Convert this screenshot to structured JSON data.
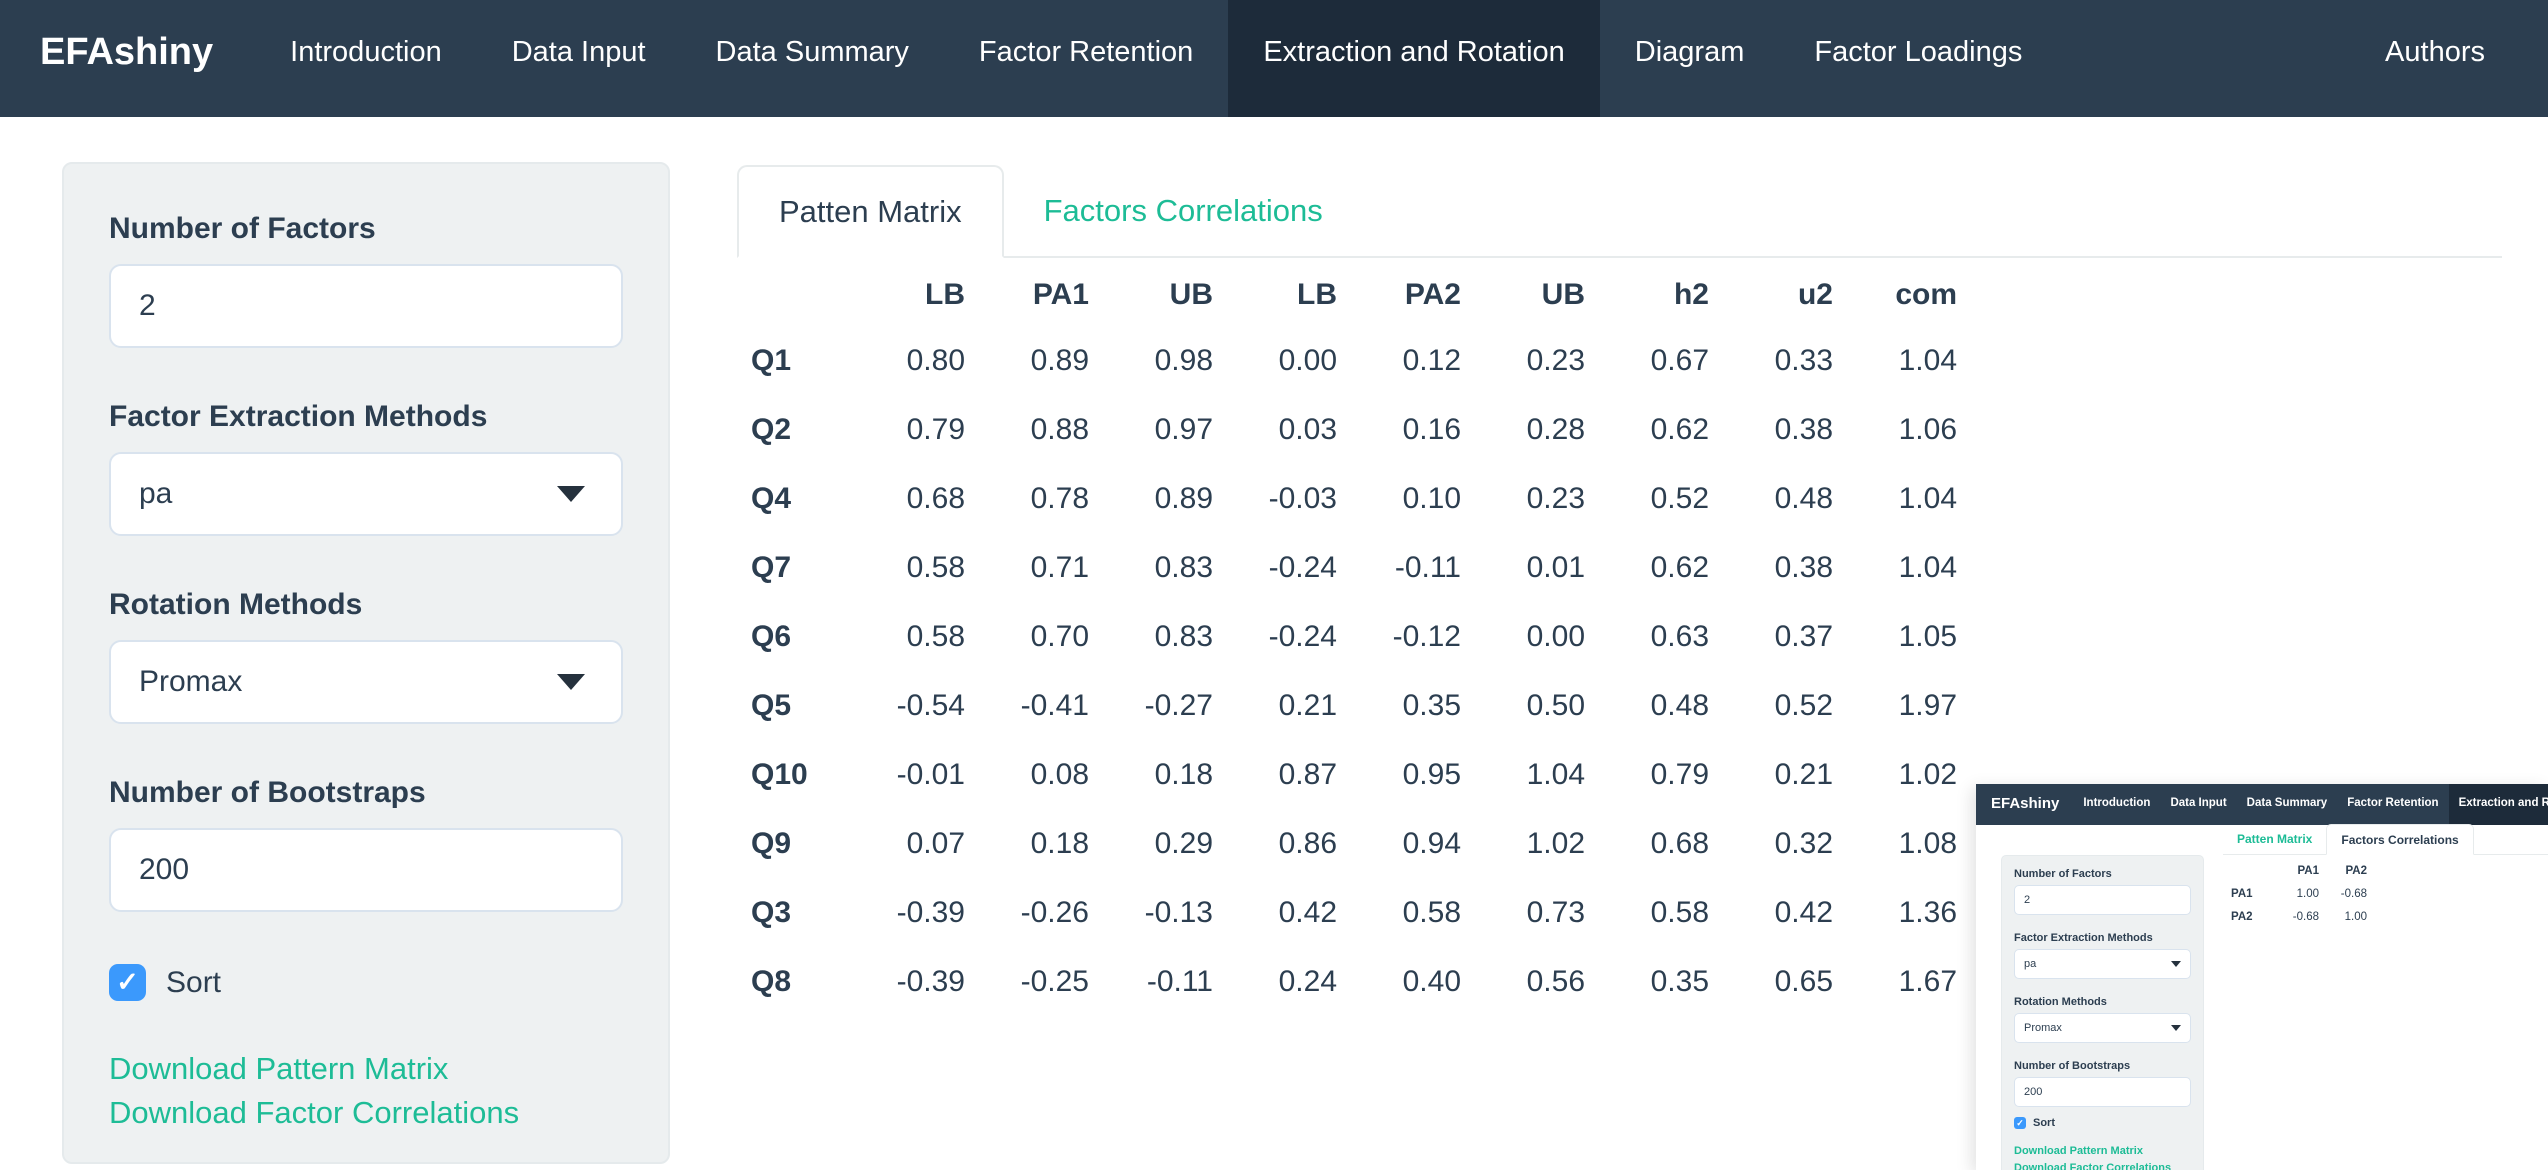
{
  "navbar": {
    "brand": "EFAshiny",
    "items": [
      {
        "label": "Introduction",
        "active": false
      },
      {
        "label": "Data Input",
        "active": false
      },
      {
        "label": "Data Summary",
        "active": false
      },
      {
        "label": "Factor Retention",
        "active": false
      },
      {
        "label": "Extraction and Rotation",
        "active": true
      },
      {
        "label": "Diagram",
        "active": false
      },
      {
        "label": "Factor Loadings",
        "active": false
      }
    ],
    "right_item": "Authors",
    "colors": {
      "bg": "#2c3e50",
      "active_bg": "#1d2b3a"
    }
  },
  "sidebar": {
    "number_of_factors": {
      "label": "Number of Factors",
      "value": "2"
    },
    "extraction_methods": {
      "label": "Factor Extraction Methods",
      "value": "pa"
    },
    "rotation_methods": {
      "label": "Rotation Methods",
      "value": "Promax"
    },
    "bootstraps": {
      "label": "Number of Bootstraps",
      "value": "200"
    },
    "sort": {
      "label": "Sort",
      "checked": true
    },
    "links": [
      "Download Pattern Matrix",
      "Download Factor Correlations"
    ],
    "link_color": "#1dbc96",
    "checkbox_color": "#3b99fc"
  },
  "main": {
    "tabs": [
      {
        "label": "Patten Matrix",
        "active": true
      },
      {
        "label": "Factors Correlations",
        "active": false
      }
    ],
    "pattern_table": {
      "columns": [
        "",
        "LB",
        "PA1",
        "UB",
        "LB",
        "PA2",
        "UB",
        "h2",
        "u2",
        "com"
      ],
      "rows": [
        {
          "name": "Q1",
          "values": [
            "0.80",
            "0.89",
            "0.98",
            "0.00",
            "0.12",
            "0.23",
            "0.67",
            "0.33",
            "1.04"
          ]
        },
        {
          "name": "Q2",
          "values": [
            "0.79",
            "0.88",
            "0.97",
            "0.03",
            "0.16",
            "0.28",
            "0.62",
            "0.38",
            "1.06"
          ]
        },
        {
          "name": "Q4",
          "values": [
            "0.68",
            "0.78",
            "0.89",
            "-0.03",
            "0.10",
            "0.23",
            "0.52",
            "0.48",
            "1.04"
          ]
        },
        {
          "name": "Q7",
          "values": [
            "0.58",
            "0.71",
            "0.83",
            "-0.24",
            "-0.11",
            "0.01",
            "0.62",
            "0.38",
            "1.04"
          ]
        },
        {
          "name": "Q6",
          "values": [
            "0.58",
            "0.70",
            "0.83",
            "-0.24",
            "-0.12",
            "0.00",
            "0.63",
            "0.37",
            "1.05"
          ]
        },
        {
          "name": "Q5",
          "values": [
            "-0.54",
            "-0.41",
            "-0.27",
            "0.21",
            "0.35",
            "0.50",
            "0.48",
            "0.52",
            "1.97"
          ]
        },
        {
          "name": "Q10",
          "values": [
            "-0.01",
            "0.08",
            "0.18",
            "0.87",
            "0.95",
            "1.04",
            "0.79",
            "0.21",
            "1.02"
          ]
        },
        {
          "name": "Q9",
          "values": [
            "0.07",
            "0.18",
            "0.29",
            "0.86",
            "0.94",
            "1.02",
            "0.68",
            "0.32",
            "1.08"
          ]
        },
        {
          "name": "Q3",
          "values": [
            "-0.39",
            "-0.26",
            "-0.13",
            "0.42",
            "0.58",
            "0.73",
            "0.58",
            "0.42",
            "1.36"
          ]
        },
        {
          "name": "Q8",
          "values": [
            "-0.39",
            "-0.25",
            "-0.11",
            "0.24",
            "0.40",
            "0.56",
            "0.35",
            "0.65",
            "1.67"
          ]
        }
      ]
    }
  },
  "thumbnail": {
    "navbar": {
      "brand": "EFAshiny",
      "items": [
        {
          "label": "Introduction",
          "active": false
        },
        {
          "label": "Data Input",
          "active": false
        },
        {
          "label": "Data Summary",
          "active": false
        },
        {
          "label": "Factor Retention",
          "active": false
        },
        {
          "label": "Extraction and Rotation",
          "active": true
        }
      ]
    },
    "sidebar": {
      "number_of_factors": {
        "label": "Number of Factors",
        "value": "2"
      },
      "extraction_methods": {
        "label": "Factor Extraction Methods",
        "value": "pa"
      },
      "rotation_methods": {
        "label": "Rotation Methods",
        "value": "Promax"
      },
      "bootstraps": {
        "label": "Number of Bootstraps",
        "value": "200"
      },
      "sort": {
        "label": "Sort",
        "checked": true
      },
      "links": [
        "Download Pattern Matrix",
        "Download Factor Correlations"
      ]
    },
    "tabs": [
      {
        "label": "Patten Matrix",
        "active": false
      },
      {
        "label": "Factors Correlations",
        "active": true
      }
    ],
    "correlation_table": {
      "columns": [
        "",
        "PA1",
        "PA2"
      ],
      "rows": [
        {
          "name": "PA1",
          "values": [
            "1.00",
            "-0.68"
          ]
        },
        {
          "name": "PA2",
          "values": [
            "-0.68",
            "1.00"
          ]
        }
      ]
    }
  }
}
